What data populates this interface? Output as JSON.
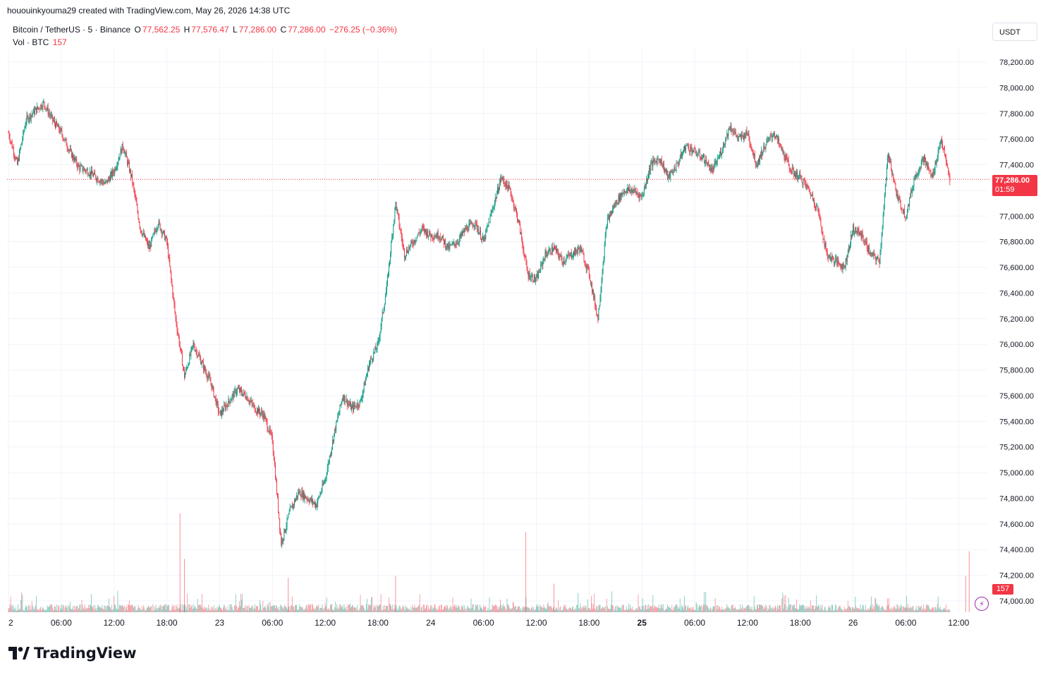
{
  "header": {
    "attribution": "hououinkyouma29 created with TradingView.com, May 26, 2026 14:38 UTC"
  },
  "legend": {
    "symbol": "Bitcoin / TetherUS · 5 · Binance",
    "o_label": "O",
    "o_value": "77,562.25",
    "h_label": "H",
    "h_value": "77,576.47",
    "l_label": "L",
    "l_value": "77,286.00",
    "c_label": "C",
    "c_value": "77,286.00",
    "change": "−276.25 (−0.36%)",
    "vol_label": "Vol · BTC",
    "vol_value": "157"
  },
  "currency": "USDT",
  "last_price_tag": {
    "price": "77,286.00",
    "countdown": "01:59"
  },
  "volume_tag": "157",
  "logo_text": "TradingView",
  "colors": {
    "up": "#089981",
    "down": "#f23645",
    "grid": "#f0f3fa",
    "text": "#131722"
  },
  "chart_data": {
    "type": "candlestick",
    "title": "",
    "y_ticks": [
      "78,200.00",
      "78,000.00",
      "77,800.00",
      "77,600.00",
      "77,400.00",
      "77,200.00",
      "77,000.00",
      "76,800.00",
      "76,600.00",
      "76,400.00",
      "76,200.00",
      "76,000.00",
      "75,800.00",
      "75,600.00",
      "75,400.00",
      "75,200.00",
      "75,000.00",
      "74,800.00",
      "74,600.00",
      "74,400.00",
      "74,200.00",
      "74,000.00"
    ],
    "y_tick_values": [
      78200,
      78000,
      77800,
      77600,
      77400,
      77200,
      77000,
      76800,
      76600,
      76400,
      76200,
      76000,
      75800,
      75600,
      75400,
      75200,
      75000,
      74800,
      74600,
      74400,
      74200,
      74000
    ],
    "ylim": [
      73920,
      78390
    ],
    "x_ticks": [
      {
        "label": "2",
        "hours": 0,
        "bold": false
      },
      {
        "label": "06:00",
        "hours": 6,
        "bold": false
      },
      {
        "label": "12:00",
        "hours": 12,
        "bold": false
      },
      {
        "label": "18:00",
        "hours": 18,
        "bold": false
      },
      {
        "label": "23",
        "hours": 24,
        "bold": false
      },
      {
        "label": "06:00",
        "hours": 30,
        "bold": false
      },
      {
        "label": "12:00",
        "hours": 36,
        "bold": false
      },
      {
        "label": "18:00",
        "hours": 42,
        "bold": false
      },
      {
        "label": "24",
        "hours": 48,
        "bold": false
      },
      {
        "label": "06:00",
        "hours": 54,
        "bold": false
      },
      {
        "label": "12:00",
        "hours": 60,
        "bold": false
      },
      {
        "label": "18:00",
        "hours": 66,
        "bold": false
      },
      {
        "label": "25",
        "hours": 72,
        "bold": true
      },
      {
        "label": "06:00",
        "hours": 78,
        "bold": false
      },
      {
        "label": "12:00",
        "hours": 84,
        "bold": false
      },
      {
        "label": "18:00",
        "hours": 90,
        "bold": false
      },
      {
        "label": "26",
        "hours": 96,
        "bold": false
      },
      {
        "label": "06:00",
        "hours": 102,
        "bold": false
      },
      {
        "label": "12:00",
        "hours": 108,
        "bold": false
      }
    ],
    "last_price": 77286,
    "price_path": [
      [
        0,
        77650
      ],
      [
        1,
        77400
      ],
      [
        2,
        77750
      ],
      [
        3,
        77820
      ],
      [
        4,
        77880
      ],
      [
        5,
        77750
      ],
      [
        6,
        77650
      ],
      [
        7,
        77500
      ],
      [
        8,
        77380
      ],
      [
        9,
        77350
      ],
      [
        10,
        77300
      ],
      [
        11,
        77250
      ],
      [
        12,
        77350
      ],
      [
        13,
        77550
      ],
      [
        14,
        77300
      ],
      [
        15,
        76900
      ],
      [
        16,
        76750
      ],
      [
        17,
        76950
      ],
      [
        18,
        76800
      ],
      [
        19,
        76200
      ],
      [
        20,
        75750
      ],
      [
        21,
        76000
      ],
      [
        22,
        75850
      ],
      [
        23,
        75700
      ],
      [
        24,
        75450
      ],
      [
        25,
        75550
      ],
      [
        26,
        75650
      ],
      [
        27,
        75600
      ],
      [
        28,
        75500
      ],
      [
        29,
        75450
      ],
      [
        30,
        75250
      ],
      [
        31,
        74450
      ],
      [
        32,
        74700
      ],
      [
        33,
        74850
      ],
      [
        34,
        74800
      ],
      [
        35,
        74750
      ],
      [
        36,
        74950
      ],
      [
        37,
        75300
      ],
      [
        38,
        75600
      ],
      [
        39,
        75500
      ],
      [
        40,
        75550
      ],
      [
        41,
        75850
      ],
      [
        42,
        76000
      ],
      [
        43,
        76450
      ],
      [
        44,
        77100
      ],
      [
        45,
        76700
      ],
      [
        46,
        76800
      ],
      [
        47,
        76900
      ],
      [
        48,
        76850
      ],
      [
        49,
        76850
      ],
      [
        50,
        76750
      ],
      [
        51,
        76800
      ],
      [
        52,
        76900
      ],
      [
        53,
        76950
      ],
      [
        54,
        76800
      ],
      [
        55,
        77050
      ],
      [
        56,
        77300
      ],
      [
        57,
        77200
      ],
      [
        58,
        76950
      ],
      [
        59,
        76550
      ],
      [
        60,
        76500
      ],
      [
        61,
        76700
      ],
      [
        62,
        76750
      ],
      [
        63,
        76650
      ],
      [
        64,
        76700
      ],
      [
        65,
        76750
      ],
      [
        66,
        76550
      ],
      [
        67,
        76200
      ],
      [
        68,
        76950
      ],
      [
        69,
        77100
      ],
      [
        70,
        77200
      ],
      [
        71,
        77200
      ],
      [
        72,
        77150
      ],
      [
        73,
        77400
      ],
      [
        74,
        77450
      ],
      [
        75,
        77300
      ],
      [
        76,
        77400
      ],
      [
        77,
        77550
      ],
      [
        78,
        77500
      ],
      [
        79,
        77450
      ],
      [
        80,
        77350
      ],
      [
        81,
        77500
      ],
      [
        82,
        77700
      ],
      [
        83,
        77600
      ],
      [
        84,
        77650
      ],
      [
        85,
        77400
      ],
      [
        86,
        77550
      ],
      [
        87,
        77650
      ],
      [
        88,
        77500
      ],
      [
        89,
        77350
      ],
      [
        90,
        77300
      ],
      [
        91,
        77200
      ],
      [
        92,
        77050
      ],
      [
        93,
        76700
      ],
      [
        94,
        76650
      ],
      [
        95,
        76600
      ],
      [
        96,
        76900
      ],
      [
        97,
        76850
      ],
      [
        98,
        76700
      ],
      [
        99,
        76650
      ],
      [
        100,
        77500
      ],
      [
        101,
        77150
      ],
      [
        102,
        77000
      ],
      [
        103,
        77300
      ],
      [
        104,
        77450
      ],
      [
        105,
        77300
      ],
      [
        106,
        77600
      ],
      [
        107,
        77286
      ]
    ],
    "volume_spikes": [
      {
        "hours": 19.5,
        "value": 520
      },
      {
        "hours": 20.0,
        "value": 280
      },
      {
        "hours": 31.8,
        "value": 180
      },
      {
        "hours": 44.0,
        "value": 190
      },
      {
        "hours": 58.8,
        "value": 420
      },
      {
        "hours": 62.0,
        "value": 150
      },
      {
        "hours": 109.2,
        "value": 320
      },
      {
        "hours": 108.8,
        "value": 190
      }
    ]
  }
}
